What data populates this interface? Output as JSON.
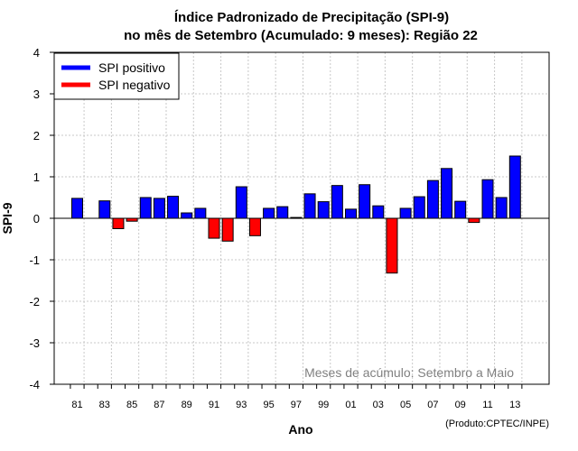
{
  "chart_data": {
    "type": "bar",
    "title_line1": "Índice Padronizado de Precipitação (SPI-9)",
    "title_line2": "no mês de Setembro (Acumulado: 9 meses): Região 22",
    "ylabel": "SPI-9",
    "xlabel": "Ano",
    "ylim": [
      -4,
      4
    ],
    "yticks": [
      -4,
      -3,
      -2,
      -1,
      0,
      1,
      2,
      3,
      4
    ],
    "grid": true,
    "x": [
      1981,
      1982,
      1983,
      1984,
      1985,
      1986,
      1987,
      1988,
      1989,
      1990,
      1991,
      1992,
      1993,
      1994,
      1995,
      1996,
      1997,
      1998,
      1999,
      2000,
      2001,
      2002,
      2003,
      2004,
      2005,
      2006,
      2007,
      2008,
      2009,
      2010,
      2011,
      2012,
      2013
    ],
    "values": [
      0.48,
      0,
      0.42,
      -0.25,
      -0.07,
      0.5,
      0.48,
      0.53,
      0.13,
      0.24,
      -0.48,
      -0.55,
      0.76,
      -0.42,
      0.24,
      0.28,
      0.02,
      0.59,
      0.4,
      0.79,
      0.22,
      0.81,
      0.3,
      -1.32,
      0.24,
      0.52,
      0.91,
      1.2,
      0.41,
      -0.1,
      0.93,
      0.5,
      1.5
    ],
    "xtick_labels": [
      "81",
      "83",
      "85",
      "87",
      "89",
      "91",
      "93",
      "95",
      "97",
      "99",
      "01",
      "03",
      "05",
      "07",
      "09",
      "11",
      "13"
    ],
    "xtick_years": [
      1981,
      1983,
      1985,
      1987,
      1989,
      1991,
      1993,
      1995,
      1997,
      1999,
      2001,
      2003,
      2005,
      2007,
      2009,
      2011,
      2013
    ],
    "legend": [
      {
        "label": "SPI positivo",
        "color": "#0000ff"
      },
      {
        "label": "SPI negativo",
        "color": "#ff0000"
      }
    ],
    "legend_position": "top-left",
    "positive_color": "#0000ff",
    "negative_color": "#ff0000",
    "annotation": "Meses de acúmulo: Setembro a Maio",
    "credit": "(Produto:CPTEC/INPE)"
  }
}
